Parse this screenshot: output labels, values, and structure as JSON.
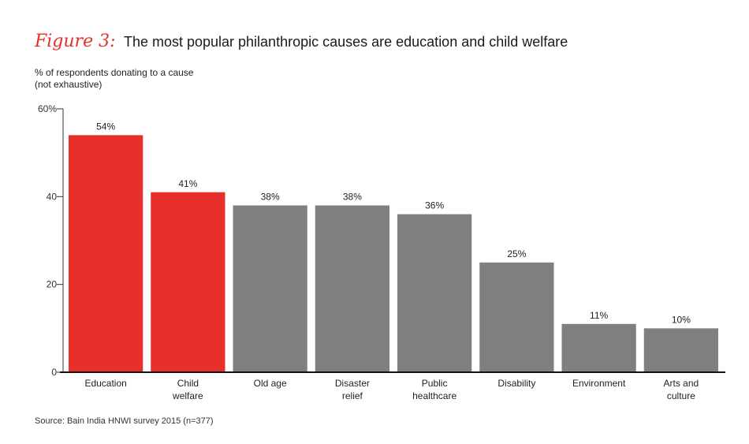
{
  "figure_label": "Figure 3:",
  "title": "The most popular philanthropic causes are education and child welfare",
  "subtitle_line1": "% of respondents donating to a cause",
  "subtitle_line2": "(not exhaustive)",
  "source": "Source: Bain India HNWI survey 2015 (n=377)",
  "colors": {
    "highlight": "#e8302a",
    "default": "#7f7f81",
    "accent_text": "#e8302a"
  },
  "chart_data": {
    "type": "bar",
    "categories": [
      [
        "Education"
      ],
      [
        "Child",
        "welfare"
      ],
      [
        "Old age"
      ],
      [
        "Disaster",
        "relief"
      ],
      [
        "Public",
        "healthcare"
      ],
      [
        "Disability"
      ],
      [
        "Environment"
      ],
      [
        "Arts and",
        "culture"
      ]
    ],
    "values": [
      54,
      41,
      38,
      38,
      36,
      25,
      11,
      10
    ],
    "value_labels": [
      "54%",
      "41%",
      "38%",
      "38%",
      "36%",
      "25%",
      "11%",
      "10%"
    ],
    "highlighted": [
      true,
      true,
      false,
      false,
      false,
      false,
      false,
      false
    ],
    "ylim": [
      0,
      60
    ],
    "yticks": [
      0,
      20,
      40,
      60
    ],
    "ytick_labels": [
      "0",
      "20",
      "40",
      "60%"
    ]
  }
}
